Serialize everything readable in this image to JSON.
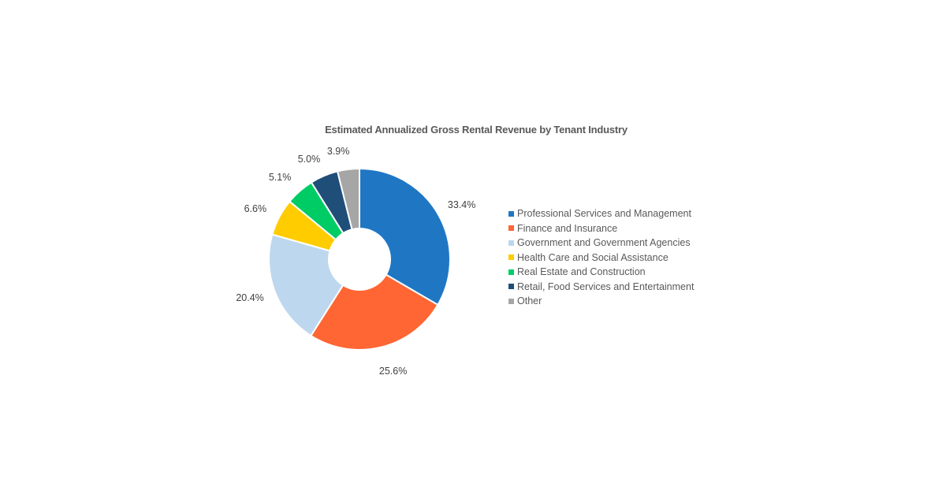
{
  "chart_data": {
    "type": "pie",
    "variant": "donut",
    "title": "Estimated Annualized Gross Rental Revenue by Tenant Industry",
    "categories": [
      "Professional Services and Management",
      "Finance and Insurance",
      "Government and Government Agencies",
      "Health Care and Social Assistance",
      "Real Estate and Construction",
      "Retail, Food Services and Entertainment",
      "Other"
    ],
    "values": [
      33.4,
      25.6,
      20.4,
      6.6,
      5.1,
      5.0,
      3.9
    ],
    "labels": [
      "33.4%",
      "25.6%",
      "20.4%",
      "6.6%",
      "5.1%",
      "5.0%",
      "3.9%"
    ],
    "colors": [
      "#1F77C4",
      "#FF6633",
      "#BDD7EE",
      "#FFCC00",
      "#00CC66",
      "#1F4E79",
      "#A6A6A6"
    ],
    "unit": "%",
    "legend_position": "right",
    "start_angle_deg": 0,
    "direction": "clockwise"
  }
}
